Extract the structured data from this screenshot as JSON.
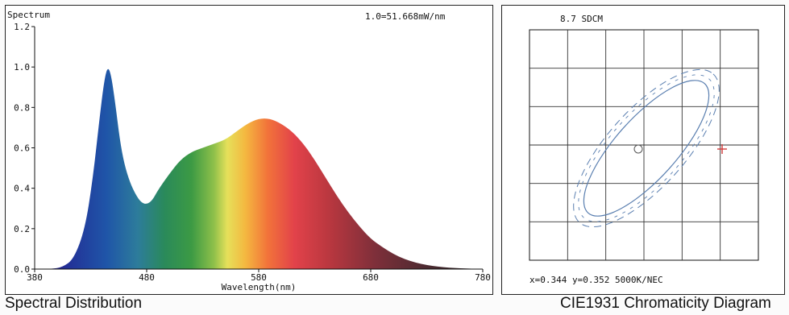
{
  "captions": {
    "spectral": "Spectral Distribution",
    "cie": "CIE1931 Chromaticity Diagram"
  },
  "chart_data": [
    {
      "type": "area",
      "title": "Spectrum",
      "annotation": "1.0=51.668mW/nm",
      "xlabel": "Wavelength(nm)",
      "ylabel": "",
      "xlim": [
        380,
        780
      ],
      "ylim": [
        0,
        1.2
      ],
      "xticks": [
        "380",
        "480",
        "580",
        "680",
        "780"
      ],
      "yticks": [
        "0.0",
        "0.2",
        "0.4",
        "0.6",
        "0.8",
        "1.0",
        "1.2"
      ],
      "x": [
        380,
        395,
        405,
        415,
        425,
        432,
        438,
        442,
        445,
        448,
        452,
        456,
        460,
        465,
        470,
        475,
        480,
        485,
        490,
        500,
        510,
        520,
        530,
        540,
        550,
        560,
        570,
        580,
        590,
        600,
        610,
        620,
        630,
        640,
        650,
        660,
        670,
        680,
        690,
        700,
        710,
        720,
        730,
        740,
        750,
        760,
        770,
        780
      ],
      "y": [
        0.0,
        0.0,
        0.01,
        0.05,
        0.2,
        0.45,
        0.75,
        0.93,
        1.0,
        0.97,
        0.82,
        0.64,
        0.52,
        0.43,
        0.37,
        0.33,
        0.32,
        0.34,
        0.39,
        0.47,
        0.54,
        0.58,
        0.6,
        0.62,
        0.64,
        0.68,
        0.72,
        0.745,
        0.745,
        0.72,
        0.68,
        0.62,
        0.54,
        0.45,
        0.36,
        0.28,
        0.21,
        0.15,
        0.11,
        0.075,
        0.05,
        0.032,
        0.02,
        0.012,
        0.007,
        0.004,
        0.002,
        0.001
      ],
      "grid": false
    },
    {
      "type": "scatter",
      "title": "8.7 SDCM",
      "readout": "x=0.344 y=0.352 5000K/NEC",
      "grid": true,
      "points": [
        {
          "name": "measured",
          "marker": "circle",
          "color": "#555555"
        },
        {
          "name": "target",
          "marker": "cross",
          "color": "#d23a3a"
        }
      ],
      "ellipse_color": "#5a7fb0"
    }
  ],
  "colors": {
    "axis": "#111111",
    "grid": "#333333",
    "ellipse": "#5a7fb0",
    "target": "#d23a3a"
  }
}
